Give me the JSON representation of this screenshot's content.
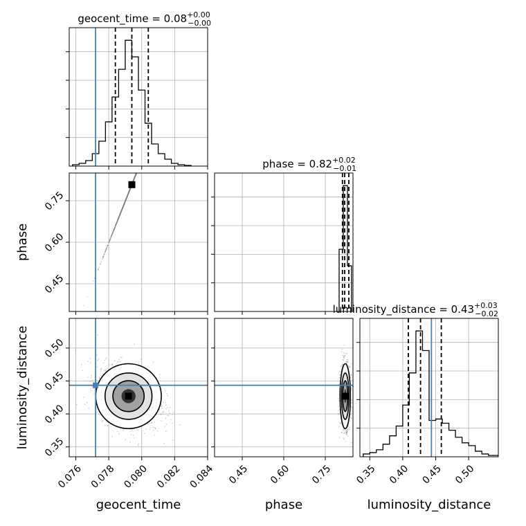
{
  "chart_data": {
    "type": "corner",
    "colors": {
      "truth": "#4682b4",
      "hist": "#000000",
      "grid": "#b0b0b0",
      "scatter": "#7f7f7f"
    },
    "parameters": [
      {
        "name": "geocent_time",
        "label": "geocent_time",
        "range": [
          0.0756,
          0.084
        ],
        "ticks": [
          0.076,
          0.078,
          0.08,
          0.082,
          0.084
        ],
        "tick_labels": [
          "0.076",
          "0.078",
          "0.080",
          "0.082",
          "0.084"
        ],
        "truth": 0.0772,
        "quantiles": [
          0.0784,
          0.0794,
          0.0804
        ],
        "title": "geocent_time = 0.08",
        "title_plus": "+0.00",
        "title_minus": "−0.00",
        "hist_bins": [
          0.0758,
          0.0762,
          0.0766,
          0.077,
          0.0774,
          0.0778,
          0.0782,
          0.0786,
          0.079,
          0.0794,
          0.0798,
          0.0802,
          0.0806,
          0.081,
          0.0814,
          0.0818,
          0.0822,
          0.0826,
          0.083
        ],
        "hist_counts": [
          1,
          2,
          4,
          9,
          18,
          32,
          50,
          70,
          91,
          79,
          55,
          31,
          16,
          9,
          5,
          2,
          1,
          0.5
        ]
      },
      {
        "name": "phase",
        "label": "phase",
        "range": [
          0.35,
          0.85
        ],
        "ticks": [
          0.45,
          0.6,
          0.75
        ],
        "tick_labels": [
          "0.45",
          "0.60",
          "0.75"
        ],
        "truth": null,
        "quantiles": [
          0.812,
          0.82,
          0.835
        ],
        "title": "phase = 0.82",
        "title_plus": "+0.02",
        "title_minus": "−0.01",
        "hist_bins": [
          0.8,
          0.815,
          0.83,
          0.845
        ],
        "hist_counts": [
          45,
          91,
          33
        ]
      },
      {
        "name": "luminosity_distance",
        "label": "luminosity_distance",
        "range": [
          0.335,
          0.545
        ],
        "ticks": [
          0.35,
          0.4,
          0.45,
          0.5
        ],
        "tick_labels": [
          "0.35",
          "0.40",
          "0.45",
          "0.50"
        ],
        "truth": 0.4435,
        "quantiles": [
          0.4085,
          0.427,
          0.4585
        ],
        "title": "luminosity_distance = 0.43",
        "title_plus": "+0.03",
        "title_minus": "−0.02",
        "hist_bins": [
          0.34,
          0.35,
          0.36,
          0.37,
          0.38,
          0.39,
          0.4,
          0.41,
          0.42,
          0.43,
          0.44,
          0.45,
          0.46,
          0.47,
          0.48,
          0.49,
          0.5,
          0.51,
          0.52,
          0.53,
          0.545
        ],
        "hist_counts": [
          2,
          3,
          5,
          9,
          15,
          22,
          37,
          60,
          90,
          76,
          26,
          27,
          24,
          19,
          14,
          10,
          8,
          4,
          2,
          1
        ]
      }
    ],
    "pair_2d": [
      {
        "x": "geocent_time",
        "y": "phase",
        "center": [
          0.0794,
          0.808
        ],
        "cov": [
          [
            6e-07,
            9e-05
          ],
          [
            9e-05,
            0.0002
          ]
        ],
        "truth": [
          0.0772,
          null
        ]
      },
      {
        "x": "geocent_time",
        "y": "luminosity_distance",
        "center": [
          0.0792,
          0.427
        ],
        "cov": [
          [
            9e-07,
            -6e-06
          ],
          [
            -6e-06,
            0.00055
          ]
        ],
        "truth": [
          0.0772,
          0.4435
        ]
      },
      {
        "x": "phase",
        "y": "luminosity_distance",
        "center": [
          0.822,
          0.427
        ],
        "cov": [
          [
            8e-05,
            0
          ],
          [
            0,
            0.00055
          ]
        ],
        "truth": [
          null,
          0.4435
        ]
      }
    ],
    "grid": true
  }
}
